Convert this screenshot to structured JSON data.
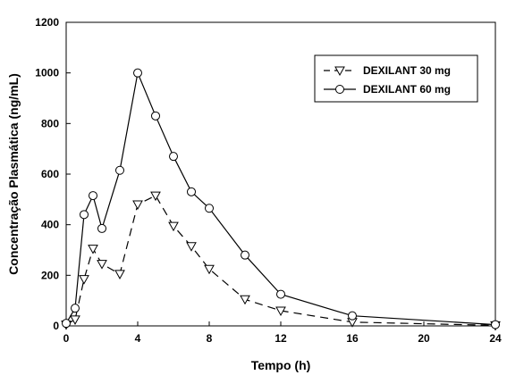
{
  "chart_data": {
    "type": "line",
    "title": "",
    "xlabel": "Tempo (h)",
    "ylabel": "Concentração Plasmática (ng/mL)",
    "xlim": [
      0,
      24
    ],
    "ylim": [
      0,
      1200
    ],
    "xticks": [
      0,
      4,
      8,
      12,
      16,
      20,
      24
    ],
    "yticks": [
      0,
      200,
      400,
      600,
      800,
      1000,
      1200
    ],
    "grid": false,
    "legend_position": "top-right",
    "series": [
      {
        "name": "DEXILANT 30 mg",
        "line_style": "dashed",
        "marker": "triangle-down",
        "x": [
          0,
          0.5,
          1,
          1.5,
          2,
          3,
          4,
          5,
          6,
          7,
          8,
          10,
          12,
          16,
          24
        ],
        "y": [
          5,
          25,
          185,
          305,
          245,
          205,
          480,
          515,
          395,
          315,
          225,
          105,
          60,
          15,
          2
        ]
      },
      {
        "name": "DEXILANT 60 mg",
        "line_style": "solid",
        "marker": "circle",
        "x": [
          0,
          0.5,
          1,
          1.5,
          2,
          3,
          4,
          5,
          6,
          7,
          8,
          10,
          12,
          16,
          24
        ],
        "y": [
          10,
          70,
          440,
          515,
          385,
          615,
          1000,
          830,
          670,
          530,
          465,
          280,
          125,
          40,
          5
        ]
      }
    ]
  }
}
